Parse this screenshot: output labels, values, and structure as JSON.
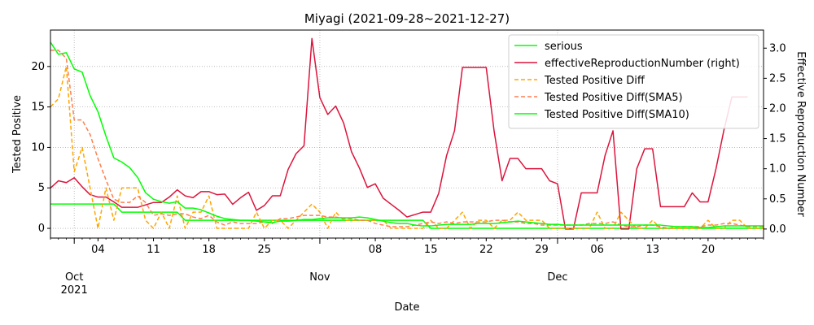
{
  "chart_data": {
    "type": "line",
    "title": "Miyagi (2021-09-28~2021-12-27)",
    "xlabel": "Date",
    "ylabel_left": "Tested Positive",
    "ylabel_right": "Effective Reproduction Number",
    "x_start": "2021-09-28",
    "x_end": "2021-12-27",
    "ylim_left": [
      -1.2,
      24.5
    ],
    "ylim_right": [
      -0.15,
      3.3
    ],
    "yticks_left": [
      0,
      5,
      10,
      15,
      20
    ],
    "yticks_right": [
      0.0,
      0.5,
      1.0,
      1.5,
      2.0,
      2.5,
      3.0
    ],
    "yticklabels_right": [
      "0.0",
      "0.5",
      "1.0",
      "1.5",
      "2.0",
      "2.5",
      "3.0"
    ],
    "x_minor_labels": [
      {
        "date": "2021-10-04",
        "label": "04"
      },
      {
        "date": "2021-10-11",
        "label": "11"
      },
      {
        "date": "2021-10-18",
        "label": "18"
      },
      {
        "date": "2021-10-25",
        "label": "25"
      },
      {
        "date": "2021-11-08",
        "label": "08"
      },
      {
        "date": "2021-11-15",
        "label": "15"
      },
      {
        "date": "2021-11-22",
        "label": "22"
      },
      {
        "date": "2021-11-29",
        "label": "29"
      },
      {
        "date": "2021-12-06",
        "label": "06"
      },
      {
        "date": "2021-12-13",
        "label": "13"
      },
      {
        "date": "2021-12-20",
        "label": "20"
      }
    ],
    "x_major_labels": [
      {
        "date": "2021-10-01",
        "label": "Oct",
        "sublabel": "2021"
      },
      {
        "date": "2021-11-01",
        "label": "Nov",
        "sublabel": ""
      },
      {
        "date": "2021-12-01",
        "label": "Dec",
        "sublabel": ""
      }
    ],
    "grid": true,
    "legend_position": "top-right",
    "series": [
      {
        "name": "serious",
        "axis": "left",
        "color": "#00ff00",
        "style": "solid",
        "values": [
          3,
          3,
          3,
          3,
          3,
          3,
          3,
          3,
          3,
          2,
          2,
          2,
          2,
          2,
          2,
          2,
          2,
          1,
          1,
          1,
          1,
          1,
          1,
          1,
          1,
          1,
          1,
          1,
          1,
          1,
          1,
          1,
          1,
          1,
          1,
          1,
          1,
          1,
          1,
          1,
          1,
          1,
          1,
          1,
          1,
          1,
          1,
          1,
          0,
          0,
          0,
          0,
          0,
          0,
          0,
          0,
          0,
          0,
          0,
          0,
          0,
          0,
          0,
          0,
          0,
          0,
          0,
          0,
          0,
          0,
          0,
          0,
          0,
          0,
          0,
          0,
          0,
          0,
          0,
          0,
          0,
          0,
          0,
          0,
          0,
          0,
          0,
          0,
          0,
          0,
          0
        ]
      },
      {
        "name": "effectiveReproductionNumber (right)",
        "axis": "right",
        "color": "#dc143c",
        "style": "solid",
        "values": [
          0.68,
          0.8,
          0.77,
          0.85,
          0.7,
          0.57,
          0.53,
          0.53,
          0.45,
          0.36,
          0.36,
          0.36,
          0.4,
          0.44,
          0.44,
          0.53,
          0.65,
          0.55,
          0.52,
          0.62,
          0.62,
          0.57,
          0.58,
          0.41,
          0.52,
          0.61,
          0.31,
          0.39,
          0.55,
          0.55,
          0.99,
          1.25,
          1.38,
          3.16,
          2.18,
          1.9,
          2.04,
          1.76,
          1.28,
          1.01,
          0.69,
          0.75,
          0.51,
          0.41,
          0.31,
          0.2,
          0.24,
          0.28,
          0.28,
          0.59,
          1.22,
          1.63,
          2.68,
          2.68,
          2.68,
          2.68,
          1.62,
          0.8,
          1.17,
          1.17,
          1.0,
          1.0,
          1.0,
          0.8,
          0.75,
          0.0,
          0.0,
          0.6,
          0.6,
          0.6,
          1.22,
          1.63,
          0.0,
          0.0,
          1.0,
          1.33,
          1.33,
          0.37,
          0.37,
          0.37,
          0.37,
          0.6,
          0.45,
          0.45,
          1.0,
          1.64,
          2.19,
          2.19,
          2.19
        ]
      },
      {
        "name": "Tested Positive Diff",
        "axis": "left",
        "color": "#ffa500",
        "style": "dashed",
        "values": [
          15,
          16,
          20,
          7,
          10,
          5,
          0,
          5,
          1,
          5,
          5,
          5,
          1,
          0,
          2,
          0,
          4,
          0,
          2,
          2,
          4,
          0,
          0,
          0,
          0,
          0,
          2,
          0,
          1,
          1,
          0,
          1,
          2,
          3,
          2,
          0,
          2,
          1,
          1,
          1,
          1,
          1,
          1,
          0,
          0,
          0,
          0,
          0,
          1,
          0,
          0,
          1,
          2,
          0,
          1,
          1,
          0,
          1,
          1,
          2,
          1,
          1,
          1,
          0,
          0,
          0,
          0,
          0,
          0,
          2,
          0,
          0,
          2,
          1,
          0,
          0,
          1,
          0,
          0,
          0,
          0,
          0,
          0,
          1,
          0,
          0,
          1,
          1,
          0,
          0,
          0
        ]
      },
      {
        "name": "Tested Positive Diff(SMA5)",
        "axis": "left",
        "color": "#ff7f50",
        "style": "dashed",
        "values": [
          22,
          22,
          21,
          13.4,
          13.4,
          11.6,
          8.6,
          6,
          3.6,
          3.2,
          3.2,
          4,
          3.2,
          1.6,
          1.8,
          1.6,
          1.8,
          1.8,
          1.4,
          1.2,
          1.6,
          0.8,
          0.4,
          0.8,
          0.6,
          0.6,
          0.6,
          0.8,
          0.6,
          1.2,
          1.2,
          1.4,
          1.6,
          1.6,
          1.6,
          1.4,
          1.4,
          1.2,
          1.2,
          1,
          1,
          0.6,
          0.4,
          0.2,
          0.2,
          0.2,
          0.4,
          0.6,
          0.8,
          0.6,
          0.8,
          0.6,
          0.8,
          0.8,
          0.8,
          0.8,
          1,
          1,
          0.8,
          0.8,
          0.6,
          0.6,
          0.4,
          0.4,
          0.4,
          0.4,
          0.4,
          0.4,
          0.6,
          0.6,
          0.6,
          0.8,
          0.4,
          0.2,
          0.2,
          0.4,
          0.4,
          0.2,
          0,
          0.2,
          0.2,
          0.2,
          0.2,
          0.4,
          0.4,
          0.6,
          0.6,
          0.4,
          0.2,
          0.2,
          0.2
        ]
      },
      {
        "name": "Tested Positive Diff(SMA10)",
        "axis": "left",
        "color": "#00ff00",
        "style": "solid",
        "values": [
          23,
          21.5,
          21.7,
          19.7,
          19.3,
          16.4,
          14.4,
          11.4,
          8.7,
          8.2,
          7.5,
          6.3,
          4.4,
          3.6,
          3.3,
          3.1,
          3.3,
          2.5,
          2.5,
          2.3,
          1.9,
          1.5,
          1.2,
          1.1,
          1,
          1,
          0.9,
          0.8,
          0.7,
          0.9,
          0.9,
          1,
          1.1,
          1.1,
          1.2,
          1.3,
          1.3,
          1.3,
          1.3,
          1.4,
          1.3,
          1.1,
          0.9,
          0.7,
          0.6,
          0.6,
          0.4,
          0.3,
          0.3,
          0.4,
          0.5,
          0.5,
          0.5,
          0.5,
          0.6,
          0.6,
          0.6,
          0.7,
          0.8,
          0.9,
          0.8,
          0.7,
          0.6,
          0.5,
          0.5,
          0.4,
          0.4,
          0.4,
          0.4,
          0.4,
          0.4,
          0.4,
          0.4,
          0.4,
          0.4,
          0.4,
          0.4,
          0.4,
          0.3,
          0.2,
          0.2,
          0.2,
          0.1,
          0.1,
          0.2,
          0.3,
          0.3,
          0.3,
          0.3,
          0.3,
          0.3
        ]
      }
    ]
  }
}
